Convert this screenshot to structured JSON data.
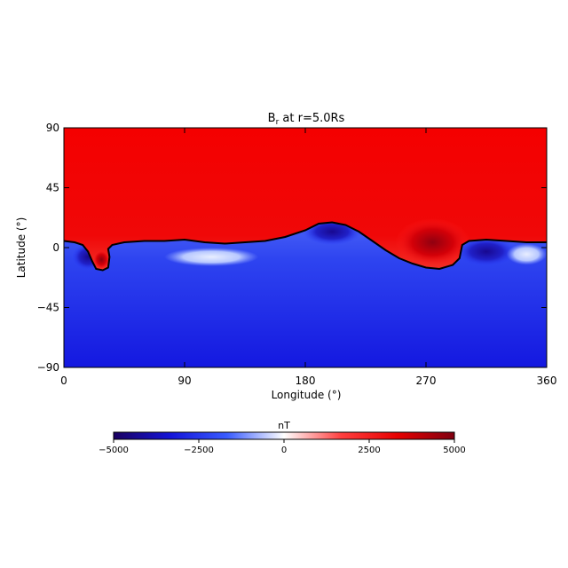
{
  "chart_data": {
    "type": "heatmap",
    "title": "B",
    "title_subscript": "r",
    "title_suffix": " at r=5.0Rs",
    "xlabel": "Longitude (°)",
    "ylabel": "Latitude (°)",
    "xlim": [
      0,
      360
    ],
    "ylim": [
      -90,
      90
    ],
    "x_ticks": [
      {
        "value": 0,
        "label": "0"
      },
      {
        "value": 90,
        "label": "90"
      },
      {
        "value": 180,
        "label": "180"
      },
      {
        "value": 270,
        "label": "270"
      },
      {
        "value": 360,
        "label": "360"
      }
    ],
    "y_ticks": [
      {
        "value": 90,
        "label": "90"
      },
      {
        "value": 45,
        "label": "45"
      },
      {
        "value": 0,
        "label": "0"
      },
      {
        "value": -45,
        "label": "−45"
      },
      {
        "value": -90,
        "label": "−90"
      }
    ],
    "colorbar": {
      "label": "nT",
      "min": -5000,
      "max": 5000,
      "ticks": [
        {
          "value": -5000,
          "label": "−5000"
        },
        {
          "value": -2500,
          "label": "−2500"
        },
        {
          "value": 0,
          "label": "0"
        },
        {
          "value": 2500,
          "label": "2500"
        },
        {
          "value": 5000,
          "label": "5000"
        }
      ],
      "colors": [
        "#1a0060",
        "#1414d8",
        "#3a5cff",
        "#ffffff",
        "#ff4040",
        "#e60000",
        "#800010"
      ]
    },
    "neutral_line": {
      "description": "zero contour of the field (black line)",
      "points": [
        [
          0,
          5
        ],
        [
          8,
          4
        ],
        [
          14,
          2
        ],
        [
          18,
          -3
        ],
        [
          21,
          -10
        ],
        [
          24,
          -16
        ],
        [
          29,
          -17
        ],
        [
          33,
          -15
        ],
        [
          34,
          -7
        ],
        [
          33,
          -1
        ],
        [
          36,
          2
        ],
        [
          45,
          4
        ],
        [
          60,
          5
        ],
        [
          75,
          5
        ],
        [
          90,
          6
        ],
        [
          105,
          4
        ],
        [
          120,
          3
        ],
        [
          135,
          4
        ],
        [
          150,
          5
        ],
        [
          165,
          8
        ],
        [
          180,
          13
        ],
        [
          190,
          18
        ],
        [
          200,
          19
        ],
        [
          210,
          17
        ],
        [
          220,
          12
        ],
        [
          230,
          5
        ],
        [
          240,
          -2
        ],
        [
          250,
          -8
        ],
        [
          260,
          -12
        ],
        [
          270,
          -15
        ],
        [
          280,
          -16
        ],
        [
          290,
          -13
        ],
        [
          295,
          -8
        ],
        [
          296,
          -3
        ],
        [
          297,
          2
        ],
        [
          302,
          5
        ],
        [
          315,
          6
        ],
        [
          330,
          5
        ],
        [
          345,
          4
        ],
        [
          360,
          4
        ]
      ]
    },
    "features": [
      {
        "kind": "negative",
        "lon": 18,
        "lat": -7,
        "r_lon": 12,
        "r_lat": 10,
        "value": -4800
      },
      {
        "kind": "positive",
        "lon": 28,
        "lat": -9,
        "r_lon": 6,
        "r_lat": 7,
        "value": 4000
      },
      {
        "kind": "negative",
        "lon": 200,
        "lat": 12,
        "r_lon": 22,
        "r_lat": 10,
        "value": -4500
      },
      {
        "kind": "positive",
        "lon": 275,
        "lat": 4,
        "r_lon": 28,
        "r_lat": 18,
        "value": 4800
      },
      {
        "kind": "negative",
        "lon": 315,
        "lat": -3,
        "r_lon": 22,
        "r_lat": 11,
        "value": -4700
      },
      {
        "kind": "weak",
        "lon": 345,
        "lat": -5,
        "r_lon": 15,
        "r_lat": 8,
        "value": -500
      },
      {
        "kind": "weak",
        "lon": 110,
        "lat": -7,
        "r_lon": 35,
        "r_lat": 7,
        "value": -1200
      }
    ]
  }
}
